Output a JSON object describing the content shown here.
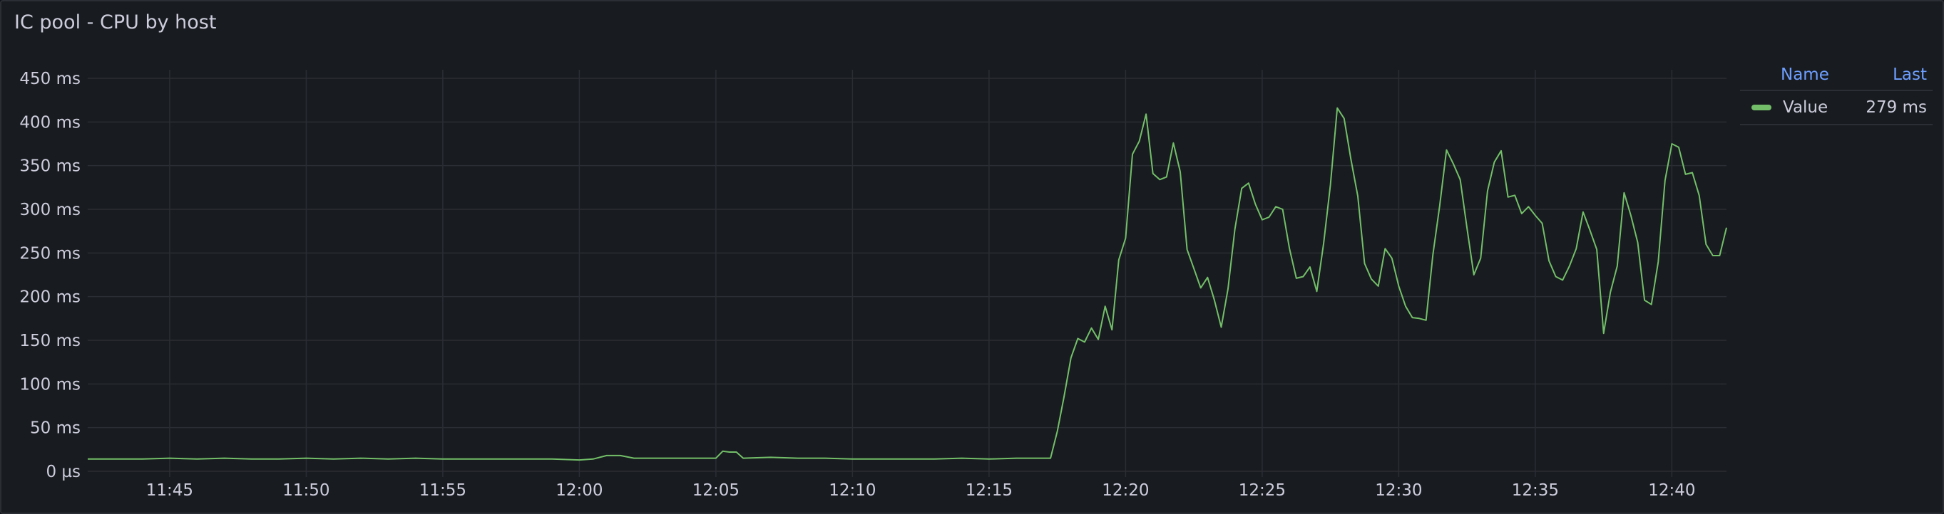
{
  "panel": {
    "title": "IC pool - CPU by host"
  },
  "legend": {
    "headers": {
      "name": "Name",
      "last": "Last"
    },
    "items": [
      {
        "name": "Value",
        "last": "279 ms",
        "color": "#73bf69"
      }
    ]
  },
  "chart_data": {
    "type": "line",
    "title": "IC pool - CPU by host",
    "xlabel": "",
    "ylabel": "",
    "xlim": [
      "11:42",
      "12:42"
    ],
    "ylim": [
      0,
      450
    ],
    "grid": true,
    "legend_placement": "right",
    "y_ticks": [
      "0 µs",
      "50 ms",
      "100 ms",
      "150 ms",
      "200 ms",
      "250 ms",
      "300 ms",
      "350 ms",
      "400 ms",
      "450 ms"
    ],
    "x_ticks": [
      "11:45",
      "11:50",
      "11:55",
      "12:00",
      "12:05",
      "12:10",
      "12:15",
      "12:20",
      "12:25",
      "12:30",
      "12:35",
      "12:40"
    ],
    "series": [
      {
        "name": "Value",
        "color": "#73bf69",
        "unit": "ms",
        "points": [
          [
            "11:42:00",
            14
          ],
          [
            "11:43:00",
            14
          ],
          [
            "11:44:00",
            14
          ],
          [
            "11:45:00",
            15
          ],
          [
            "11:46:00",
            14
          ],
          [
            "11:47:00",
            15
          ],
          [
            "11:48:00",
            14
          ],
          [
            "11:49:00",
            14
          ],
          [
            "11:50:00",
            15
          ],
          [
            "11:51:00",
            14
          ],
          [
            "11:52:00",
            15
          ],
          [
            "11:53:00",
            14
          ],
          [
            "11:54:00",
            15
          ],
          [
            "11:55:00",
            14
          ],
          [
            "11:56:00",
            14
          ],
          [
            "11:57:00",
            14
          ],
          [
            "11:58:00",
            14
          ],
          [
            "11:59:00",
            14
          ],
          [
            "12:00:00",
            13
          ],
          [
            "12:00:30",
            14
          ],
          [
            "12:01:00",
            18
          ],
          [
            "12:01:30",
            18
          ],
          [
            "12:02:00",
            15
          ],
          [
            "12:03:00",
            15
          ],
          [
            "12:04:00",
            15
          ],
          [
            "12:04:45",
            15
          ],
          [
            "12:05:00",
            15
          ],
          [
            "12:05:15",
            23
          ],
          [
            "12:05:30",
            22
          ],
          [
            "12:05:45",
            22
          ],
          [
            "12:06:00",
            15
          ],
          [
            "12:07:00",
            16
          ],
          [
            "12:08:00",
            15
          ],
          [
            "12:09:00",
            15
          ],
          [
            "12:10:00",
            14
          ],
          [
            "12:11:00",
            14
          ],
          [
            "12:12:00",
            14
          ],
          [
            "12:13:00",
            14
          ],
          [
            "12:14:00",
            15
          ],
          [
            "12:15:00",
            14
          ],
          [
            "12:16:00",
            15
          ],
          [
            "12:17:00",
            15
          ],
          [
            "12:17:15",
            15
          ],
          [
            "12:17:30",
            46
          ],
          [
            "12:17:45",
            86
          ],
          [
            "12:18:00",
            130
          ],
          [
            "12:18:15",
            152
          ],
          [
            "12:18:30",
            148
          ],
          [
            "12:18:45",
            164
          ],
          [
            "12:19:00",
            151
          ],
          [
            "12:19:15",
            189
          ],
          [
            "12:19:30",
            162
          ],
          [
            "12:19:45",
            242
          ],
          [
            "12:20:00",
            267
          ],
          [
            "12:20:15",
            363
          ],
          [
            "12:20:30",
            378
          ],
          [
            "12:20:45",
            409
          ],
          [
            "12:21:00",
            341
          ],
          [
            "12:21:15",
            334
          ],
          [
            "12:21:30",
            337
          ],
          [
            "12:21:45",
            376
          ],
          [
            "12:22:00",
            343
          ],
          [
            "12:22:15",
            254
          ],
          [
            "12:22:30",
            232
          ],
          [
            "12:22:45",
            210
          ],
          [
            "12:23:00",
            222
          ],
          [
            "12:23:15",
            196
          ],
          [
            "12:23:30",
            165
          ],
          [
            "12:23:45",
            209
          ],
          [
            "12:24:00",
            277
          ],
          [
            "12:24:15",
            324
          ],
          [
            "12:24:30",
            330
          ],
          [
            "12:24:45",
            306
          ],
          [
            "12:25:00",
            288
          ],
          [
            "12:25:15",
            291
          ],
          [
            "12:25:30",
            303
          ],
          [
            "12:25:45",
            300
          ],
          [
            "12:26:00",
            255
          ],
          [
            "12:26:15",
            221
          ],
          [
            "12:26:30",
            223
          ],
          [
            "12:26:45",
            234
          ],
          [
            "12:27:00",
            206
          ],
          [
            "12:27:15",
            261
          ],
          [
            "12:27:30",
            328
          ],
          [
            "12:27:45",
            416
          ],
          [
            "12:28:00",
            404
          ],
          [
            "12:28:15",
            357
          ],
          [
            "12:28:30",
            315
          ],
          [
            "12:28:45",
            238
          ],
          [
            "12:29:00",
            220
          ],
          [
            "12:29:15",
            212
          ],
          [
            "12:29:30",
            255
          ],
          [
            "12:29:45",
            244
          ],
          [
            "12:30:00",
            212
          ],
          [
            "12:30:15",
            189
          ],
          [
            "12:30:30",
            176
          ],
          [
            "12:30:45",
            175
          ],
          [
            "12:31:00",
            173
          ],
          [
            "12:31:15",
            248
          ],
          [
            "12:31:30",
            304
          ],
          [
            "12:31:45",
            368
          ],
          [
            "12:32:00",
            352
          ],
          [
            "12:32:15",
            334
          ],
          [
            "12:32:30",
            278
          ],
          [
            "12:32:45",
            225
          ],
          [
            "12:33:00",
            244
          ],
          [
            "12:33:15",
            321
          ],
          [
            "12:33:30",
            354
          ],
          [
            "12:33:45",
            367
          ],
          [
            "12:34:00",
            314
          ],
          [
            "12:34:15",
            316
          ],
          [
            "12:34:30",
            295
          ],
          [
            "12:34:45",
            303
          ],
          [
            "12:35:00",
            293
          ],
          [
            "12:35:15",
            284
          ],
          [
            "12:35:30",
            241
          ],
          [
            "12:35:45",
            223
          ],
          [
            "12:36:00",
            219
          ],
          [
            "12:36:15",
            235
          ],
          [
            "12:36:30",
            255
          ],
          [
            "12:36:45",
            297
          ],
          [
            "12:37:00",
            276
          ],
          [
            "12:37:15",
            254
          ],
          [
            "12:37:30",
            158
          ],
          [
            "12:37:45",
            205
          ],
          [
            "12:38:00",
            235
          ],
          [
            "12:38:15",
            319
          ],
          [
            "12:38:30",
            293
          ],
          [
            "12:38:45",
            262
          ],
          [
            "12:39:00",
            196
          ],
          [
            "12:39:15",
            191
          ],
          [
            "12:39:30",
            240
          ],
          [
            "12:39:45",
            333
          ],
          [
            "12:40:00",
            375
          ],
          [
            "12:40:15",
            371
          ],
          [
            "12:40:30",
            340
          ],
          [
            "12:40:45",
            342
          ],
          [
            "12:41:00",
            316
          ],
          [
            "12:41:15",
            260
          ],
          [
            "12:41:30",
            247
          ],
          [
            "12:41:45",
            247
          ],
          [
            "12:42:00",
            279
          ]
        ]
      }
    ]
  }
}
